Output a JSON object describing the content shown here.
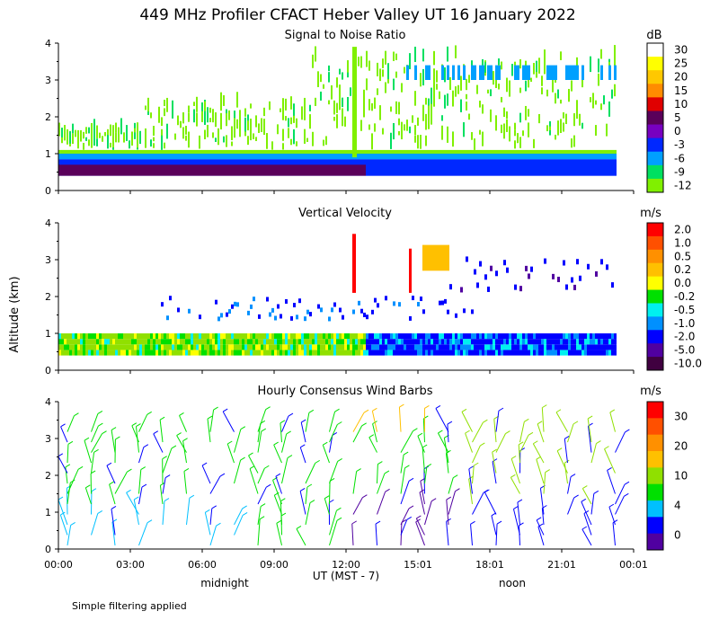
{
  "title": "449 MHz Profiler CFACT Heber Valley UT 16 January 2022",
  "ylabel": "Altitude (km)",
  "xlabel": "UT  (MST - 7)",
  "midnight_label": "midnight",
  "noon_label": "noon",
  "footnote": "Simple filtering applied",
  "x_ticks": [
    "00:00",
    "03:00",
    "06:00",
    "09:00",
    "12:00",
    "15:01",
    "18:01",
    "21:01",
    "00:01"
  ],
  "chart_data": [
    {
      "type": "heatmap",
      "title": "Signal to Noise Ratio",
      "units": "dB",
      "ylim": [
        0,
        4
      ],
      "y_ticks": [
        "0",
        "1",
        "2",
        "3",
        "4"
      ],
      "colorbar": {
        "labels": [
          "30",
          "25",
          "20",
          "15",
          "10",
          "5",
          "0",
          "-3",
          "-6",
          "-9",
          "-12"
        ],
        "colors": [
          "#ffffff",
          "#ffff00",
          "#ffc800",
          "#ff8c00",
          "#e00000",
          "#5a005a",
          "#7800c0",
          "#0028ff",
          "#00a0ff",
          "#00e060",
          "#80f000"
        ]
      }
    },
    {
      "type": "heatmap",
      "title": "Vertical Velocity",
      "units": "m/s",
      "ylim": [
        0,
        4
      ],
      "y_ticks": [
        "0",
        "1",
        "2",
        "3",
        "4"
      ],
      "colorbar": {
        "labels": [
          "2.0",
          "1.0",
          "0.5",
          "0.2",
          "0.0",
          "-0.2",
          "-0.5",
          "-1.0",
          "-2.0",
          "-5.0",
          "-10.0"
        ],
        "colors": [
          "#ff0000",
          "#ff5000",
          "#ff9000",
          "#ffc000",
          "#ffff00",
          "#00e000",
          "#00f0f0",
          "#0090ff",
          "#0000ff",
          "#5000a0",
          "#400040"
        ]
      }
    },
    {
      "type": "scatter",
      "title": "Hourly Consensus Wind Barbs",
      "units": "m/s",
      "ylim": [
        0,
        4
      ],
      "y_ticks": [
        "0",
        "1",
        "2",
        "3",
        "4"
      ],
      "colorbar": {
        "labels": [
          "30",
          "20",
          "10",
          "4",
          "0"
        ],
        "colors": [
          "#ff0000",
          "#ff5000",
          "#ff9000",
          "#ffc000",
          "#90e000",
          "#00e000",
          "#00c0ff",
          "#0000ff",
          "#5000a0"
        ]
      }
    }
  ]
}
